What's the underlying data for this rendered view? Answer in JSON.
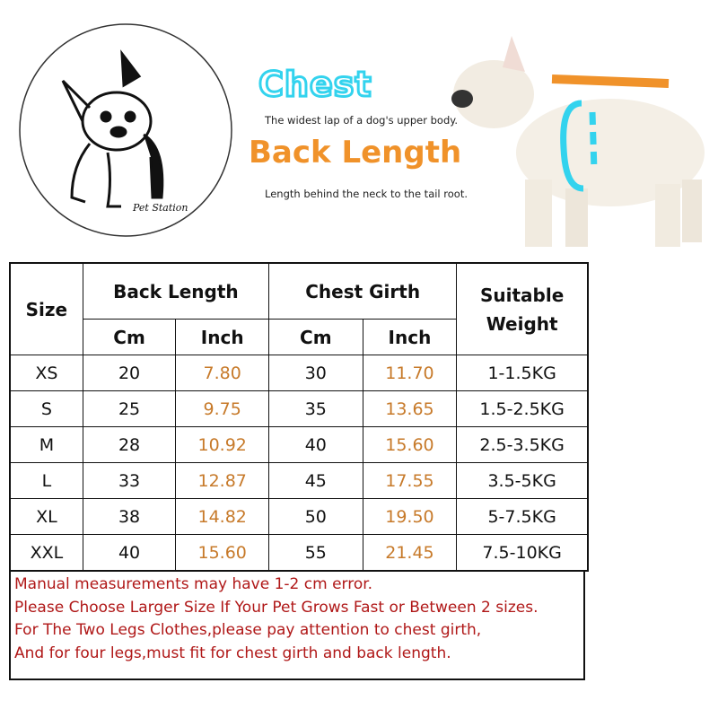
{
  "logo": {
    "text": "Pet Station"
  },
  "legend": {
    "chest_title": "Chest",
    "chest_desc": "The widest lap of a dog's upper body.",
    "back_title": "Back Length",
    "back_desc": "Length behind the neck to the tail root.",
    "colors": {
      "chest": "#33d3ee",
      "back": "#f0922a"
    }
  },
  "table": {
    "headers": {
      "size": "Size",
      "back_length": "Back Length",
      "chest_girth": "Chest Girth",
      "weight": "Suitable Weight",
      "cm": "Cm",
      "inch": "Inch"
    },
    "rows": [
      {
        "size": "XS",
        "back_cm": "20",
        "back_in": "7.80",
        "chest_cm": "30",
        "chest_in": "11.70",
        "weight": "1-1.5KG"
      },
      {
        "size": "S",
        "back_cm": "25",
        "back_in": "9.75",
        "chest_cm": "35",
        "chest_in": "13.65",
        "weight": "1.5-2.5KG"
      },
      {
        "size": "M",
        "back_cm": "28",
        "back_in": "10.92",
        "chest_cm": "40",
        "chest_in": "15.60",
        "weight": "2.5-3.5KG"
      },
      {
        "size": "L",
        "back_cm": "33",
        "back_in": "12.87",
        "chest_cm": "45",
        "chest_in": "17.55",
        "weight": "3.5-5KG"
      },
      {
        "size": "XL",
        "back_cm": "38",
        "back_in": "14.82",
        "chest_cm": "50",
        "chest_in": "19.50",
        "weight": "5-7.5KG"
      },
      {
        "size": "XXL",
        "back_cm": "40",
        "back_in": "15.60",
        "chest_cm": "55",
        "chest_in": "21.45",
        "weight": "7.5-10KG"
      }
    ]
  },
  "notes": [
    "Manual measurements may have 1-2 cm error.",
    "Please Choose Larger Size If Your Pet Grows Fast or Between 2 sizes.",
    "For The Two Legs Clothes,please pay attention to chest girth,",
    "And for four legs,must fit for chest girth and back length."
  ]
}
